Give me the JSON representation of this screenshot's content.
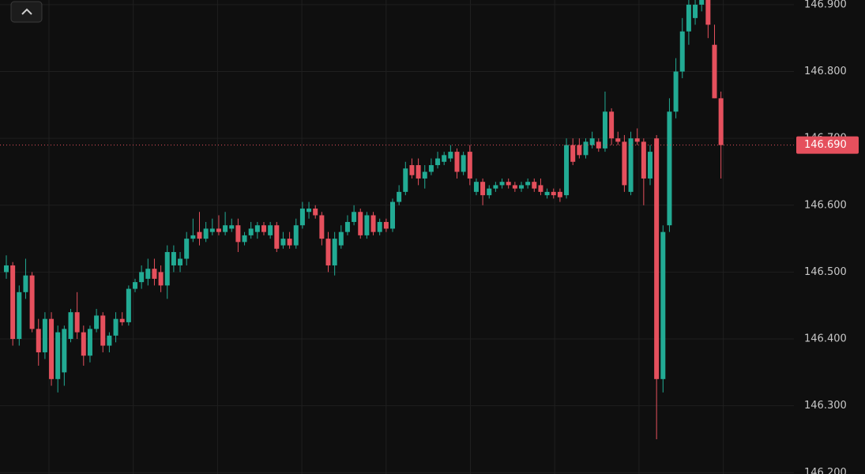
{
  "chart_data": {
    "type": "candlestick",
    "up_color": "#22ab94",
    "down_color": "#e5505d",
    "ylim": [
      146.198,
      146.907
    ],
    "yticks": [
      {
        "value": 146.2,
        "label": "146.200"
      },
      {
        "value": 146.3,
        "label": "146.300"
      },
      {
        "value": 146.4,
        "label": "146.400"
      },
      {
        "value": 146.5,
        "label": "146.500"
      },
      {
        "value": 146.6,
        "label": "146.600"
      },
      {
        "value": 146.7,
        "label": "146.700"
      },
      {
        "value": 146.8,
        "label": "146.800"
      },
      {
        "value": 146.9,
        "label": "146.900"
      }
    ],
    "grid": true,
    "last_price": {
      "value": 146.69,
      "label": "146.690"
    },
    "open": [
      146.5,
      146.51,
      146.4,
      146.47,
      146.495,
      146.415,
      146.38,
      146.43,
      146.34,
      146.35,
      146.4,
      146.44,
      146.41,
      146.375,
      146.415,
      146.435,
      146.39,
      146.405,
      146.43,
      146.425,
      146.475,
      146.485,
      146.49,
      146.505,
      146.5,
      146.48,
      146.51,
      146.51,
      146.52,
      146.55,
      146.56,
      146.55,
      146.56,
      146.565,
      146.56,
      146.565,
      146.57,
      146.545,
      146.555,
      146.56,
      146.57,
      146.555,
      146.57,
      146.54,
      146.55,
      146.54,
      146.57,
      146.59,
      146.595,
      146.585,
      146.55,
      146.51,
      146.54,
      146.56,
      146.575,
      146.59,
      146.555,
      146.585,
      146.56,
      146.575,
      146.565,
      146.605,
      146.62,
      146.66,
      146.66,
      146.64,
      146.65,
      146.66,
      146.665,
      146.67,
      146.68,
      146.65,
      146.68,
      146.62,
      146.635,
      146.615,
      146.625,
      146.63,
      146.635,
      146.63,
      146.625,
      146.63,
      146.635,
      146.63,
      146.615,
      146.62,
      146.62,
      146.615,
      146.69,
      146.69,
      146.675,
      146.69,
      146.695,
      146.685,
      146.74,
      146.7,
      146.695,
      146.62,
      146.7,
      146.695,
      146.64,
      146.7,
      146.34,
      146.57,
      146.74,
      146.8,
      146.86,
      146.88,
      146.9,
      146.91,
      146.84,
      146.76
    ],
    "high": [
      146.525,
      146.515,
      146.48,
      146.52,
      146.5,
      146.43,
      146.44,
      146.44,
      146.42,
      146.42,
      146.445,
      146.47,
      146.42,
      146.42,
      146.445,
      146.44,
      146.41,
      146.44,
      146.44,
      146.48,
      146.49,
      146.51,
      146.52,
      146.52,
      146.51,
      146.54,
      146.54,
      146.53,
      146.56,
      146.58,
      146.59,
      146.575,
      146.58,
      146.585,
      146.59,
      146.58,
      146.58,
      146.56,
      146.575,
      146.575,
      146.575,
      146.575,
      146.575,
      146.56,
      146.56,
      146.58,
      146.605,
      146.605,
      146.6,
      146.59,
      146.56,
      146.56,
      146.57,
      146.585,
      146.6,
      146.595,
      146.59,
      146.59,
      146.58,
      146.58,
      146.61,
      146.63,
      146.665,
      146.67,
      146.67,
      146.66,
      146.67,
      146.68,
      146.68,
      146.69,
      146.685,
      146.68,
      146.69,
      146.64,
      146.64,
      146.63,
      146.635,
      146.64,
      146.64,
      146.635,
      146.635,
      146.64,
      146.64,
      146.64,
      146.625,
      146.625,
      146.625,
      146.7,
      146.7,
      146.7,
      146.7,
      146.71,
      146.7,
      146.77,
      146.745,
      146.71,
      146.705,
      146.71,
      146.715,
      146.7,
      146.69,
      146.705,
      146.57,
      146.76,
      146.82,
      146.88,
      146.93,
      146.91,
      146.93,
      146.92,
      146.87,
      146.77
    ],
    "low": [
      146.49,
      146.39,
      146.39,
      146.46,
      146.41,
      146.36,
      146.37,
      146.33,
      146.32,
      146.33,
      146.395,
      146.4,
      146.36,
      146.365,
      146.41,
      146.38,
      146.38,
      146.395,
      146.42,
      146.42,
      146.47,
      146.475,
      146.48,
      146.48,
      146.47,
      146.46,
      146.5,
      146.5,
      146.51,
      146.545,
      146.54,
      146.545,
      146.555,
      146.555,
      146.555,
      146.56,
      146.53,
      146.54,
      146.55,
      146.55,
      146.555,
      146.55,
      146.53,
      146.535,
      146.535,
      146.535,
      146.565,
      146.58,
      146.58,
      146.54,
      146.5,
      146.495,
      146.535,
      146.555,
      146.57,
      146.55,
      146.55,
      146.555,
      146.555,
      146.56,
      146.56,
      146.6,
      146.615,
      146.64,
      146.63,
      146.625,
      146.645,
      146.655,
      146.66,
      146.665,
      146.64,
      146.645,
      146.63,
      146.615,
      146.6,
      146.61,
      146.62,
      146.625,
      146.625,
      146.62,
      146.62,
      146.625,
      146.62,
      146.615,
      146.61,
      146.61,
      146.605,
      146.61,
      146.66,
      146.67,
      146.67,
      146.685,
      146.68,
      146.68,
      146.69,
      146.69,
      146.62,
      146.615,
      146.69,
      146.6,
      146.63,
      146.25,
      146.32,
      146.56,
      146.73,
      146.79,
      146.84,
      146.87,
      146.89,
      146.85,
      146.76,
      146.64
    ],
    "close": [
      146.51,
      146.4,
      146.47,
      146.495,
      146.415,
      146.38,
      146.43,
      146.34,
      146.41,
      146.415,
      146.44,
      146.41,
      146.375,
      146.415,
      146.435,
      146.39,
      146.405,
      146.43,
      146.425,
      146.475,
      146.485,
      146.5,
      146.505,
      146.49,
      146.48,
      146.53,
      146.53,
      146.52,
      146.55,
      146.555,
      146.55,
      146.565,
      146.565,
      146.56,
      146.57,
      146.57,
      146.545,
      146.555,
      146.565,
      146.57,
      146.56,
      146.57,
      146.535,
      146.55,
      146.54,
      146.57,
      146.595,
      146.595,
      146.585,
      146.55,
      146.51,
      146.55,
      146.56,
      146.575,
      146.59,
      146.555,
      146.585,
      146.56,
      146.575,
      146.565,
      146.605,
      146.62,
      146.655,
      146.645,
      146.64,
      146.65,
      146.66,
      146.67,
      146.675,
      146.68,
      146.65,
      146.675,
      146.64,
      146.635,
      146.615,
      146.625,
      146.63,
      146.635,
      146.63,
      146.625,
      146.63,
      146.635,
      146.625,
      146.62,
      146.62,
      146.615,
      146.612,
      146.69,
      146.665,
      146.675,
      146.695,
      146.7,
      146.685,
      146.74,
      146.7,
      146.695,
      146.63,
      146.7,
      146.695,
      146.64,
      146.68,
      146.34,
      146.56,
      146.74,
      146.8,
      146.86,
      146.9,
      146.9,
      146.91,
      146.87,
      146.76,
      146.69
    ]
  }
}
